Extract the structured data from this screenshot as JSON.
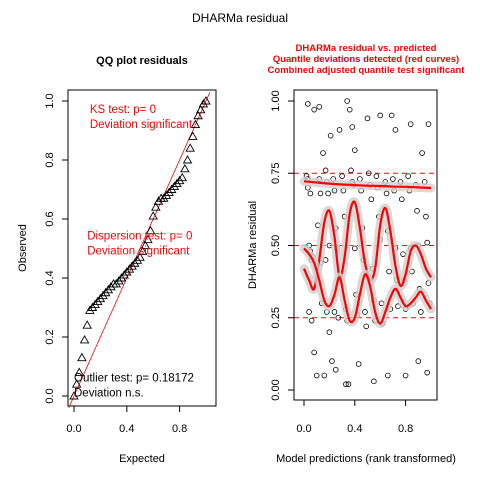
{
  "figure_title": "DHARMa residual",
  "colors": {
    "axis": "#000000",
    "red": "#ff0000",
    "darkred": "#cc0000",
    "band": "#cfcfcf"
  },
  "chart_data": [
    {
      "type": "scatter",
      "title": "QQ plot residuals",
      "xlabel": "Expected",
      "ylabel": "Observed",
      "xlim": [
        0,
        1
      ],
      "ylim": [
        0,
        1
      ],
      "xticks": [
        "0.0",
        "0.4",
        "0.8"
      ],
      "yticks": [
        "0.0",
        "0.2",
        "0.4",
        "0.6",
        "0.8",
        "1.0"
      ],
      "marker": "triangle",
      "reference_line": {
        "from": [
          0,
          0
        ],
        "to": [
          1,
          1
        ]
      },
      "points_xy": [
        [
          0.0,
          0.0
        ],
        [
          0.02,
          0.04
        ],
        [
          0.04,
          0.08
        ],
        [
          0.06,
          0.13
        ],
        [
          0.08,
          0.19
        ],
        [
          0.1,
          0.24
        ],
        [
          0.12,
          0.29
        ],
        [
          0.14,
          0.3
        ],
        [
          0.16,
          0.31
        ],
        [
          0.18,
          0.32
        ],
        [
          0.2,
          0.33
        ],
        [
          0.22,
          0.34
        ],
        [
          0.24,
          0.35
        ],
        [
          0.26,
          0.36
        ],
        [
          0.28,
          0.37
        ],
        [
          0.3,
          0.38
        ],
        [
          0.32,
          0.38
        ],
        [
          0.34,
          0.39
        ],
        [
          0.36,
          0.4
        ],
        [
          0.38,
          0.41
        ],
        [
          0.4,
          0.42
        ],
        [
          0.42,
          0.43
        ],
        [
          0.44,
          0.44
        ],
        [
          0.46,
          0.45
        ],
        [
          0.48,
          0.46
        ],
        [
          0.5,
          0.47
        ],
        [
          0.52,
          0.49
        ],
        [
          0.54,
          0.51
        ],
        [
          0.56,
          0.53
        ],
        [
          0.58,
          0.56
        ],
        [
          0.6,
          0.61
        ],
        [
          0.62,
          0.64
        ],
        [
          0.64,
          0.66
        ],
        [
          0.66,
          0.67
        ],
        [
          0.68,
          0.67
        ],
        [
          0.7,
          0.68
        ],
        [
          0.72,
          0.69
        ],
        [
          0.74,
          0.7
        ],
        [
          0.76,
          0.71
        ],
        [
          0.78,
          0.72
        ],
        [
          0.8,
          0.73
        ],
        [
          0.82,
          0.74
        ],
        [
          0.84,
          0.77
        ],
        [
          0.86,
          0.8
        ],
        [
          0.88,
          0.84
        ],
        [
          0.9,
          0.88
        ],
        [
          0.92,
          0.92
        ],
        [
          0.94,
          0.95
        ],
        [
          0.96,
          0.97
        ],
        [
          0.98,
          0.99
        ],
        [
          1.0,
          1.0
        ]
      ],
      "annotations": [
        {
          "lines": [
            "KS test: p= 0",
            "Deviation  significant"
          ],
          "color": "red",
          "at": [
            0.12,
            0.96
          ]
        },
        {
          "lines": [
            "Dispersion test: p= 0",
            "Deviation  significant"
          ],
          "color": "red",
          "at": [
            0.1,
            0.53
          ]
        },
        {
          "lines": [
            "Outlier test: p= 0.18172",
            "Deviation  n.s."
          ],
          "color": "black",
          "at": [
            0.0,
            0.05
          ]
        }
      ]
    },
    {
      "type": "scatter",
      "title_lines": [
        "DHARMa residual vs. predicted",
        "Quantile deviations detected (red curves)",
        "Combined adjusted quantile test significant"
      ],
      "xlabel": "Model predictions (rank transformed)",
      "ylabel": "DHARMa residual",
      "xlim": [
        0,
        1
      ],
      "ylim": [
        0,
        1
      ],
      "xticks": [
        "0.0",
        "0.4",
        "0.8"
      ],
      "yticks": [
        "0.00",
        "0.25",
        "0.50",
        "0.75",
        "1.00"
      ],
      "reference_quantiles": [
        0.25,
        0.5,
        0.75
      ],
      "points_xy": [
        [
          0.02,
          0.74
        ],
        [
          0.03,
          0.73
        ],
        [
          0.03,
          0.7
        ],
        [
          0.05,
          0.68
        ],
        [
          0.04,
          0.5
        ],
        [
          0.05,
          0.48
        ],
        [
          0.06,
          0.45
        ],
        [
          0.07,
          0.46
        ],
        [
          0.04,
          0.27
        ],
        [
          0.06,
          0.24
        ],
        [
          0.03,
          0.99
        ],
        [
          0.08,
          0.97
        ],
        [
          0.08,
          0.13
        ],
        [
          0.1,
          0.05
        ],
        [
          0.12,
          0.73
        ],
        [
          0.13,
          0.68
        ],
        [
          0.11,
          0.57
        ],
        [
          0.13,
          0.44
        ],
        [
          0.14,
          0.3
        ],
        [
          0.12,
          0.98
        ],
        [
          0.15,
          0.82
        ],
        [
          0.16,
          0.05
        ],
        [
          0.17,
          0.76
        ],
        [
          0.18,
          0.72
        ],
        [
          0.19,
          0.68
        ],
        [
          0.17,
          0.45
        ],
        [
          0.2,
          0.5
        ],
        [
          0.18,
          0.27
        ],
        [
          0.2,
          0.2
        ],
        [
          0.21,
          0.88
        ],
        [
          0.22,
          0.1
        ],
        [
          0.23,
          0.73
        ],
        [
          0.24,
          0.69
        ],
        [
          0.25,
          0.56
        ],
        [
          0.26,
          0.49
        ],
        [
          0.24,
          0.27
        ],
        [
          0.27,
          0.25
        ],
        [
          0.25,
          0.07
        ],
        [
          0.28,
          0.9
        ],
        [
          0.3,
          0.74
        ],
        [
          0.31,
          0.69
        ],
        [
          0.32,
          0.6
        ],
        [
          0.33,
          0.28
        ],
        [
          0.34,
          0.24
        ],
        [
          0.33,
          0.02
        ],
        [
          0.35,
          0.02
        ],
        [
          0.34,
          1.0
        ],
        [
          0.36,
          0.97
        ],
        [
          0.37,
          0.76
        ],
        [
          0.38,
          0.72
        ],
        [
          0.39,
          0.71
        ],
        [
          0.4,
          0.49
        ],
        [
          0.41,
          0.33
        ],
        [
          0.42,
          0.26
        ],
        [
          0.43,
          0.09
        ],
        [
          0.38,
          0.91
        ],
        [
          0.4,
          0.83
        ],
        [
          0.44,
          0.73
        ],
        [
          0.45,
          0.69
        ],
        [
          0.46,
          0.56
        ],
        [
          0.47,
          0.45
        ],
        [
          0.48,
          0.27
        ],
        [
          0.49,
          0.22
        ],
        [
          0.5,
          0.94
        ],
        [
          0.51,
          0.75
        ],
        [
          0.52,
          0.71
        ],
        [
          0.53,
          0.66
        ],
        [
          0.54,
          0.42
        ],
        [
          0.55,
          0.31
        ],
        [
          0.56,
          0.24
        ],
        [
          0.55,
          0.03
        ],
        [
          0.57,
          0.74
        ],
        [
          0.58,
          0.7
        ],
        [
          0.59,
          0.6
        ],
        [
          0.6,
          0.52
        ],
        [
          0.61,
          0.3
        ],
        [
          0.62,
          0.23
        ],
        [
          0.6,
          0.95
        ],
        [
          0.64,
          0.72
        ],
        [
          0.65,
          0.68
        ],
        [
          0.66,
          0.55
        ],
        [
          0.67,
          0.41
        ],
        [
          0.68,
          0.28
        ],
        [
          0.66,
          0.05
        ],
        [
          0.69,
          0.95
        ],
        [
          0.7,
          0.73
        ],
        [
          0.71,
          0.69
        ],
        [
          0.72,
          0.49
        ],
        [
          0.73,
          0.38
        ],
        [
          0.74,
          0.29
        ],
        [
          0.72,
          0.9
        ],
        [
          0.76,
          0.72
        ],
        [
          0.77,
          0.66
        ],
        [
          0.78,
          0.47
        ],
        [
          0.79,
          0.38
        ],
        [
          0.8,
          0.28
        ],
        [
          0.8,
          0.05
        ],
        [
          0.82,
          0.74
        ],
        [
          0.83,
          0.69
        ],
        [
          0.84,
          0.49
        ],
        [
          0.85,
          0.41
        ],
        [
          0.86,
          0.3
        ],
        [
          0.84,
          0.92
        ],
        [
          0.88,
          0.71
        ],
        [
          0.89,
          0.62
        ],
        [
          0.9,
          0.5
        ],
        [
          0.91,
          0.35
        ],
        [
          0.92,
          0.27
        ],
        [
          0.9,
          0.1
        ],
        [
          0.93,
          0.82
        ],
        [
          0.95,
          0.72
        ],
        [
          0.96,
          0.6
        ],
        [
          0.97,
          0.51
        ],
        [
          0.98,
          0.37
        ],
        [
          0.99,
          0.3
        ],
        [
          0.97,
          0.06
        ],
        [
          0.98,
          0.92
        ]
      ],
      "series": [
        {
          "quantile": 0.75,
          "color": "red",
          "x": [
            0.0,
            0.1,
            0.2,
            0.3,
            0.4,
            0.5,
            0.6,
            0.7,
            0.8,
            0.9,
            1.0
          ],
          "y": [
            0.722,
            0.718,
            0.714,
            0.711,
            0.709,
            0.707,
            0.706,
            0.704,
            0.703,
            0.701,
            0.699
          ]
        },
        {
          "quantile": 0.5,
          "color": "red",
          "x": [
            0.0,
            0.04,
            0.08,
            0.12,
            0.16,
            0.2,
            0.24,
            0.28,
            0.32,
            0.36,
            0.4,
            0.44,
            0.48,
            0.52,
            0.56,
            0.6,
            0.64,
            0.68,
            0.72,
            0.76,
            0.8,
            0.84,
            0.88,
            0.92,
            0.96,
            1.0
          ],
          "y": [
            0.42,
            0.38,
            0.35,
            0.45,
            0.58,
            0.62,
            0.53,
            0.39,
            0.46,
            0.61,
            0.65,
            0.56,
            0.44,
            0.38,
            0.42,
            0.57,
            0.63,
            0.55,
            0.43,
            0.36,
            0.4,
            0.48,
            0.5,
            0.47,
            0.42,
            0.39
          ]
        },
        {
          "quantile": 0.25,
          "color": "red",
          "x": [
            0.0,
            0.04,
            0.08,
            0.12,
            0.16,
            0.2,
            0.24,
            0.28,
            0.32,
            0.36,
            0.4,
            0.44,
            0.48,
            0.52,
            0.56,
            0.6,
            0.64,
            0.68,
            0.72,
            0.76,
            0.8,
            0.84,
            0.88,
            0.92,
            0.96,
            1.0
          ],
          "y": [
            0.49,
            0.47,
            0.44,
            0.38,
            0.31,
            0.29,
            0.33,
            0.39,
            0.31,
            0.24,
            0.25,
            0.33,
            0.4,
            0.36,
            0.27,
            0.23,
            0.27,
            0.32,
            0.35,
            0.32,
            0.29,
            0.3,
            0.32,
            0.34,
            0.31,
            0.28
          ]
        }
      ]
    }
  ]
}
